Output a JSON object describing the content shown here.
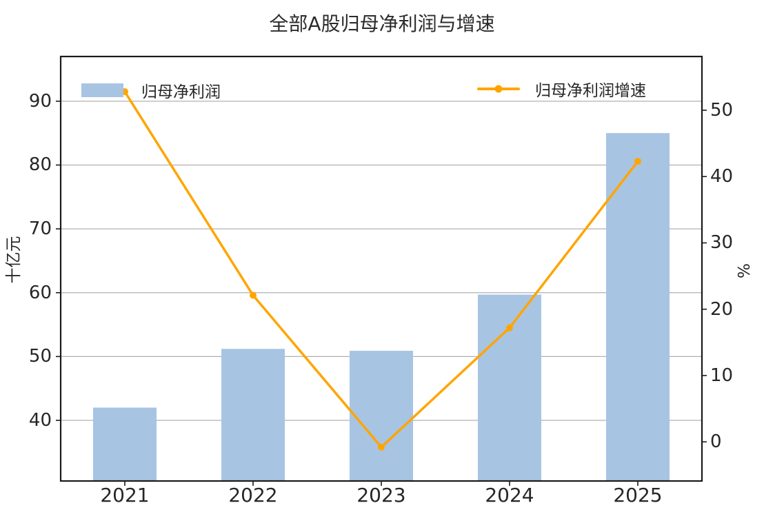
{
  "chart_data": {
    "type": "combo-bar-line",
    "title": "全部A股归母净利润与增速",
    "categories": [
      "2021",
      "2022",
      "2023",
      "2024",
      "2025"
    ],
    "series": [
      {
        "name": "归母净利润",
        "type": "bar",
        "axis": "left",
        "color": "#a8c4e3",
        "values": [
          42.0,
          51.2,
          50.9,
          59.7,
          85.0
        ]
      },
      {
        "name": "归母净利润增速",
        "type": "line",
        "axis": "right",
        "color": "#ffa500",
        "values": [
          52.8,
          22.1,
          -0.8,
          17.2,
          42.3
        ]
      }
    ],
    "left_axis": {
      "label": "十亿元",
      "ticks": [
        40,
        50,
        60,
        70,
        80,
        90
      ],
      "range": [
        30.5,
        97.0
      ]
    },
    "right_axis": {
      "label": "%",
      "ticks": [
        0,
        10,
        20,
        30,
        40,
        50
      ],
      "range": [
        -5.9,
        58.1
      ]
    },
    "legend": {
      "entries": [
        "归母净利润",
        "归母净利润增速"
      ],
      "position": "top inside, bar left / line right"
    },
    "grid": {
      "horizontal": true,
      "source": "left-axis ticks",
      "vertical": false
    },
    "colors": {
      "text": "#262626",
      "title": "#2b2b2b",
      "grid": "#b0b0b0",
      "spine": "#1a1a1a",
      "background": "#ffffff"
    }
  }
}
